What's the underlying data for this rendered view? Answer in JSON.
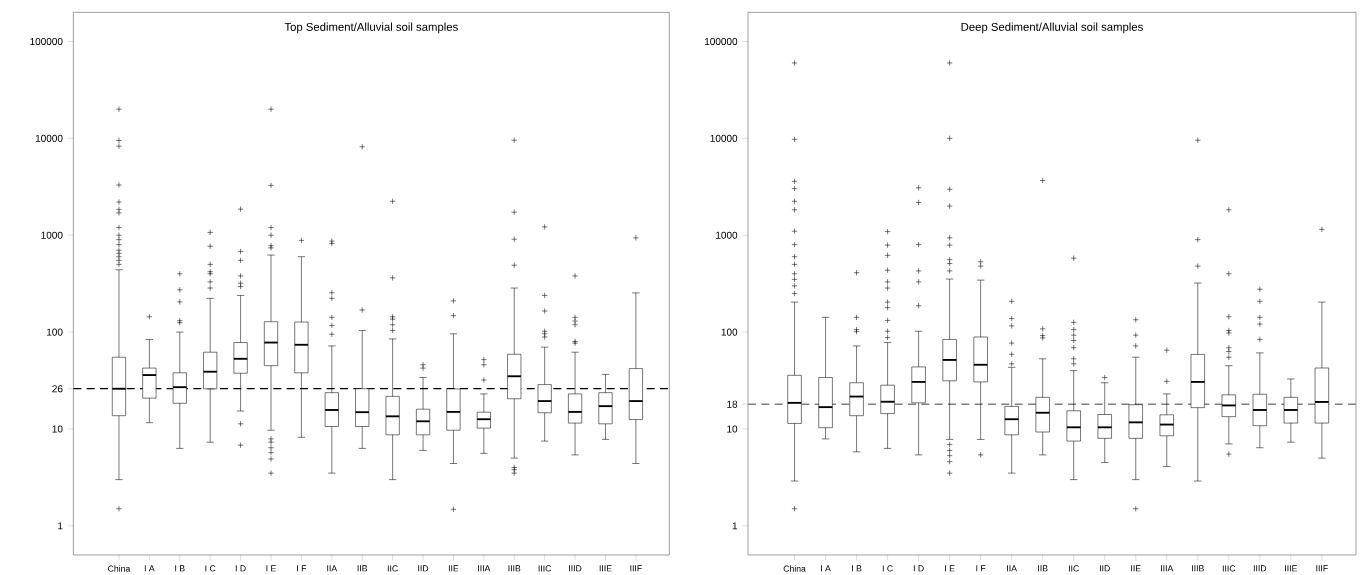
{
  "chart_data": [
    {
      "type": "box",
      "title": "Top Sediment/Alluvial soil samples",
      "log": true,
      "ylim": [
        0.5,
        200000
      ],
      "yticks": [
        1,
        10,
        26,
        100,
        1000,
        10000,
        100000
      ],
      "categories": [
        "China",
        "I A",
        "I B",
        "I C",
        "I D",
        "I E",
        "I F",
        "IIA",
        "IIB",
        "IIC",
        "IID",
        "IIE",
        "IIIA",
        "IIIB",
        "IIIC",
        "IIID",
        "IIIE",
        "IIIF"
      ],
      "ref_lines": [
        {
          "axis": "y",
          "value": 26,
          "color": "#000000",
          "line_style": "dashed"
        }
      ],
      "boxes": [
        {
          "low": 3.0,
          "q1": 13.7,
          "median": 26,
          "q3": 55,
          "high": 440,
          "outliers": [
            1.5,
            500,
            550,
            600,
            650,
            700,
            800,
            900,
            1000,
            1200,
            1700,
            1850,
            2200,
            3300,
            8300,
            9500,
            20000
          ]
        },
        {
          "low": 11.6,
          "q1": 20.8,
          "median": 36,
          "q3": 42.5,
          "high": 84,
          "outliers": [
            144
          ]
        },
        {
          "low": 6.3,
          "q1": 18.4,
          "median": 27,
          "q3": 38,
          "high": 100,
          "outliers": [
            125,
            131,
            205,
            273,
            400
          ]
        },
        {
          "low": 7.3,
          "q1": 26,
          "median": 39,
          "q3": 62,
          "high": 223,
          "outliers": [
            285,
            330,
            400,
            420,
            500,
            770,
            1070
          ]
        },
        {
          "low": 15.3,
          "q1": 37.6,
          "median": 53,
          "q3": 78,
          "high": 239,
          "outliers": [
            11.3,
            6.8,
            295,
            320,
            380,
            550,
            680,
            1860
          ]
        },
        {
          "low": 9.7,
          "q1": 45,
          "median": 78,
          "q3": 128,
          "high": 624,
          "outliers": [
            7.9,
            7.3,
            6.4,
            5.7,
            4.9,
            3.5,
            740,
            780,
            1000,
            1200,
            3270,
            20000
          ]
        },
        {
          "low": 8.2,
          "q1": 38,
          "median": 74,
          "q3": 127,
          "high": 600,
          "outliers": [
            885
          ]
        },
        {
          "low": 3.5,
          "q1": 10.6,
          "median": 15.7,
          "q3": 23.7,
          "high": 72,
          "outliers": [
            95,
            117,
            142,
            223,
            255,
            820,
            870
          ]
        },
        {
          "low": 6.3,
          "q1": 10.6,
          "median": 14.9,
          "q3": 26,
          "high": 104,
          "outliers": [
            169,
            8190
          ]
        },
        {
          "low": 3.0,
          "q1": 8.7,
          "median": 13.5,
          "q3": 21.7,
          "high": 85,
          "outliers": [
            104,
            119,
            136,
            144,
            363,
            2240
          ]
        },
        {
          "low": 6.0,
          "q1": 8.7,
          "median": 12.0,
          "q3": 16,
          "high": 34,
          "outliers": [
            42.5,
            46
          ]
        },
        {
          "low": 4.4,
          "q1": 9.7,
          "median": 15,
          "q3": 25.9,
          "high": 96,
          "outliers": [
            1.48,
            148,
            210
          ]
        },
        {
          "low": 5.6,
          "q1": 10.2,
          "median": 12.6,
          "q3": 14.9,
          "high": 23,
          "outliers": [
            32,
            46,
            52
          ]
        },
        {
          "low": 5.0,
          "q1": 20.5,
          "median": 35,
          "q3": 59,
          "high": 285,
          "outliers": [
            4.0,
            3.8,
            3.5,
            490,
            910,
            1730,
            9560
          ]
        },
        {
          "low": 7.5,
          "q1": 14.7,
          "median": 19.4,
          "q3": 28.7,
          "high": 70,
          "outliers": [
            89,
            96,
            102,
            165,
            239,
            1220
          ]
        },
        {
          "low": 5.4,
          "q1": 11.5,
          "median": 15,
          "q3": 23,
          "high": 62,
          "outliers": [
            77,
            80,
            119,
            130,
            142,
            380
          ]
        },
        {
          "low": 7.8,
          "q1": 11.3,
          "median": 17.2,
          "q3": 23.7,
          "high": 36.6
        },
        {
          "low": 4.4,
          "q1": 12.5,
          "median": 19.4,
          "q3": 42,
          "high": 254,
          "outliers": [
            940
          ]
        }
      ]
    },
    {
      "type": "box",
      "title": "Deep Sediment/Alluvial soil samples",
      "log": true,
      "ylim": [
        0.5,
        200000
      ],
      "yticks": [
        1,
        10,
        18,
        100,
        1000,
        10000,
        100000
      ],
      "categories": [
        "China",
        "I A",
        "I B",
        "I C",
        "I D",
        "I E",
        "I F",
        "IIA",
        "IIB",
        "IIC",
        "IID",
        "IIE",
        "IIIA",
        "IIIB",
        "IIIC",
        "IIID",
        "IIIE",
        "IIIF"
      ],
      "ref_lines": [
        {
          "axis": "y",
          "value": 18,
          "color": "#808080",
          "line_style": "dashed"
        }
      ],
      "boxes": [
        {
          "low": 2.9,
          "q1": 11.4,
          "median": 18.6,
          "q3": 35.8,
          "high": 204,
          "outliers": [
            1.5,
            250,
            300,
            350,
            400,
            500,
            600,
            800,
            1100,
            1830,
            2240,
            3030,
            3600,
            9770,
            60000
          ]
        },
        {
          "low": 7.9,
          "q1": 10.3,
          "median": 16.8,
          "q3": 34,
          "high": 142
        },
        {
          "low": 5.8,
          "q1": 13.7,
          "median": 21.6,
          "q3": 30,
          "high": 72,
          "outliers": [
            101,
            106,
            142,
            410
          ]
        },
        {
          "low": 6.3,
          "q1": 14.4,
          "median": 19.1,
          "q3": 28.3,
          "high": 78,
          "outliers": [
            88,
            102,
            132,
            179,
            204,
            285,
            330,
            435,
            620,
            790,
            1090
          ]
        },
        {
          "low": 5.4,
          "q1": 18.6,
          "median": 30.6,
          "q3": 43.7,
          "high": 102,
          "outliers": [
            187,
            330,
            428,
            800,
            2180,
            3090
          ]
        },
        {
          "low": 7.8,
          "q1": 31.4,
          "median": 51.6,
          "q3": 84,
          "high": 353,
          "outliers": [
            6.9,
            6.0,
            5.3,
            4.6,
            3.5,
            428,
            510,
            560,
            790,
            940,
            2000,
            2980,
            10000,
            60000
          ]
        },
        {
          "low": 7.8,
          "q1": 30.6,
          "median": 46,
          "q3": 89,
          "high": 344,
          "outliers": [
            5.4,
            480,
            532
          ]
        },
        {
          "low": 3.5,
          "q1": 8.7,
          "median": 12.6,
          "q3": 17.1,
          "high": 43.3,
          "outliers": [
            47,
            59,
            77,
            116,
            138,
            208
          ]
        },
        {
          "low": 5.4,
          "q1": 9.3,
          "median": 14.7,
          "q3": 21.2,
          "high": 53,
          "outliers": [
            87,
            92,
            108,
            3670
          ]
        },
        {
          "low": 3.0,
          "q1": 7.5,
          "median": 10.4,
          "q3": 15.4,
          "high": 40,
          "outliers": [
            47,
            53,
            69,
            82,
            93,
            106,
            126,
            580
          ]
        },
        {
          "low": 4.5,
          "q1": 8.0,
          "median": 10.4,
          "q3": 14.1,
          "high": 30,
          "outliers": [
            34
          ]
        },
        {
          "low": 3.0,
          "q1": 8.0,
          "median": 11.7,
          "q3": 17.8,
          "high": 55,
          "outliers": [
            1.5,
            72,
            93,
            134
          ]
        },
        {
          "low": 4.1,
          "q1": 8.5,
          "median": 11.1,
          "q3": 14,
          "high": 23,
          "outliers": [
            31,
            65
          ]
        },
        {
          "low": 2.9,
          "q1": 16.6,
          "median": 30.6,
          "q3": 58.8,
          "high": 321,
          "outliers": [
            480,
            900,
            9560
          ]
        },
        {
          "low": 7.0,
          "q1": 13.4,
          "median": 17.5,
          "q3": 22.5,
          "high": 45,
          "outliers": [
            5.5,
            55,
            63,
            69,
            98,
            104,
            144,
            400,
            1830
          ]
        },
        {
          "low": 6.4,
          "q1": 10.8,
          "median": 15.7,
          "q3": 22.8,
          "high": 61,
          "outliers": [
            84,
            121,
            142,
            208,
            277
          ]
        },
        {
          "low": 7.3,
          "q1": 11.5,
          "median": 15.7,
          "q3": 21.2,
          "high": 32.8
        },
        {
          "low": 5.0,
          "q1": 11.5,
          "median": 19.0,
          "q3": 42.6,
          "high": 204,
          "outliers": [
            1150
          ]
        }
      ]
    }
  ]
}
